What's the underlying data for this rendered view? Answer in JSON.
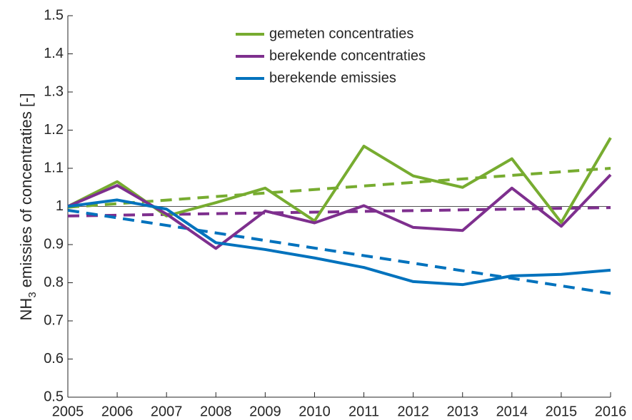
{
  "chart_data": {
    "type": "line",
    "y_label": {
      "prefix": "NH",
      "subscript": "3",
      "suffix": " emissies of concentraties [-]"
    },
    "x": [
      2005,
      2006,
      2007,
      2008,
      2009,
      2010,
      2011,
      2012,
      2013,
      2014,
      2015,
      2016
    ],
    "xlim": [
      2005,
      2016
    ],
    "xticks": [
      2005,
      2006,
      2007,
      2008,
      2009,
      2010,
      2011,
      2012,
      2013,
      2014,
      2015,
      2016
    ],
    "ylim": [
      0.5,
      1.5
    ],
    "yticks": [
      0.5,
      0.6,
      0.7,
      0.8,
      0.9,
      1,
      1.1,
      1.2,
      1.3,
      1.4,
      1.5
    ],
    "legend": "top",
    "series": [
      {
        "name": "gemeten concentraties",
        "color": "#77ac30",
        "values": [
          1.0,
          1.065,
          0.975,
          1.01,
          1.048,
          0.962,
          1.158,
          1.08,
          1.05,
          1.125,
          0.958,
          1.18
        ]
      },
      {
        "name": "berekende concentraties",
        "color": "#7e2f8e",
        "values": [
          1.0,
          1.055,
          0.98,
          0.89,
          0.988,
          0.957,
          1.002,
          0.945,
          0.937,
          1.048,
          0.948,
          1.083
        ]
      },
      {
        "name": "berekende emissies",
        "color": "#0072bd",
        "values": [
          1.0,
          1.017,
          0.993,
          0.905,
          0.887,
          0.865,
          0.84,
          0.803,
          0.795,
          0.818,
          0.822,
          0.833
        ]
      }
    ],
    "trend_lines": [
      {
        "color": "#77ac30",
        "x": [
          2005,
          2016
        ],
        "values": [
          0.998,
          1.1
        ]
      },
      {
        "color": "#7e2f8e",
        "x": [
          2005,
          2016
        ],
        "values": [
          0.975,
          0.997
        ]
      },
      {
        "color": "#0072bd",
        "x": [
          2005,
          2016
        ],
        "values": [
          0.99,
          0.772
        ]
      }
    ],
    "reference_line": 1
  }
}
